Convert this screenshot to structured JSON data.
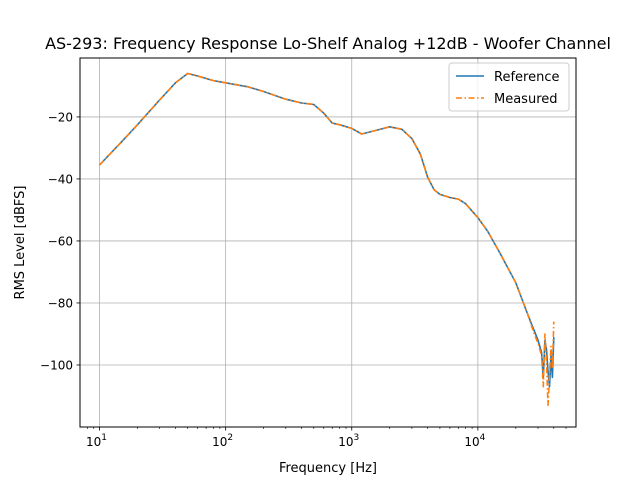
{
  "chart_data": {
    "type": "line",
    "title": "AS-293: Frequency Response Lo-Shelf Analog +12dB - Woofer Channel",
    "xlabel": "Frequency [Hz]",
    "ylabel": "RMS Level [dBFS]",
    "xscale": "log",
    "xlim": [
      7,
      60000
    ],
    "ylim": [
      -120,
      -1
    ],
    "xticks": [
      {
        "value": 10,
        "base": "10",
        "exp": "1"
      },
      {
        "value": 100,
        "base": "10",
        "exp": "2"
      },
      {
        "value": 1000,
        "base": "10",
        "exp": "3"
      },
      {
        "value": 10000,
        "base": "10",
        "exp": "4"
      }
    ],
    "yticks": [
      {
        "value": -20,
        "label": "−20"
      },
      {
        "value": -40,
        "label": "−40"
      },
      {
        "value": -60,
        "label": "−60"
      },
      {
        "value": -80,
        "label": "−80"
      },
      {
        "value": -100,
        "label": "−100"
      }
    ],
    "grid": true,
    "legend_position": "upper-right",
    "series": [
      {
        "name": "Reference",
        "color": "#1f77b4",
        "style": "solid",
        "x": [
          10,
          15,
          20,
          30,
          40,
          50,
          60,
          80,
          100,
          150,
          200,
          300,
          400,
          500,
          600,
          700,
          800,
          1000,
          1200,
          1500,
          2000,
          2500,
          3000,
          3500,
          4000,
          4500,
          5000,
          6000,
          7000,
          8000,
          10000,
          12000,
          15000,
          20000,
          25000,
          28000,
          30000,
          32000,
          33000,
          34000,
          35000,
          36000,
          37000,
          38000,
          39000,
          40000
        ],
        "y": [
          -35.5,
          -28,
          -22.5,
          -14.5,
          -9,
          -6,
          -6.8,
          -8.3,
          -9,
          -10.3,
          -11.8,
          -14.3,
          -15.5,
          -16,
          -18.8,
          -22,
          -22.5,
          -23.7,
          -25.5,
          -24.5,
          -23.2,
          -24,
          -27,
          -32,
          -39.5,
          -43.5,
          -45,
          -46,
          -46.5,
          -48,
          -52.5,
          -57,
          -64,
          -73.5,
          -84,
          -89,
          -92,
          -96,
          -104,
          -92,
          -95,
          -102,
          -107,
          -97,
          -104,
          -91
        ]
      },
      {
        "name": "Measured",
        "color": "#ff7f0e",
        "style": "dashdot",
        "x": [
          10,
          15,
          20,
          30,
          40,
          50,
          60,
          80,
          100,
          150,
          200,
          300,
          400,
          500,
          600,
          700,
          800,
          1000,
          1200,
          1500,
          2000,
          2500,
          3000,
          3500,
          4000,
          4500,
          5000,
          6000,
          7000,
          8000,
          10000,
          12000,
          15000,
          20000,
          25000,
          28000,
          30000,
          32000,
          33000,
          34000,
          35000,
          36000,
          37000,
          38000,
          39000,
          40000
        ],
        "y": [
          -35.5,
          -28,
          -22.5,
          -14.5,
          -9,
          -6,
          -6.8,
          -8.3,
          -9,
          -10.3,
          -11.8,
          -14.3,
          -15.5,
          -16,
          -18.8,
          -22,
          -22.5,
          -23.7,
          -25.5,
          -24.5,
          -23.2,
          -24,
          -27,
          -32,
          -39.5,
          -43.5,
          -45,
          -46,
          -46.5,
          -48,
          -52.5,
          -57,
          -64,
          -73.5,
          -84,
          -90,
          -93,
          -97,
          -107,
          -90,
          -99,
          -113,
          -103,
          -94,
          -101,
          -86
        ]
      }
    ]
  }
}
